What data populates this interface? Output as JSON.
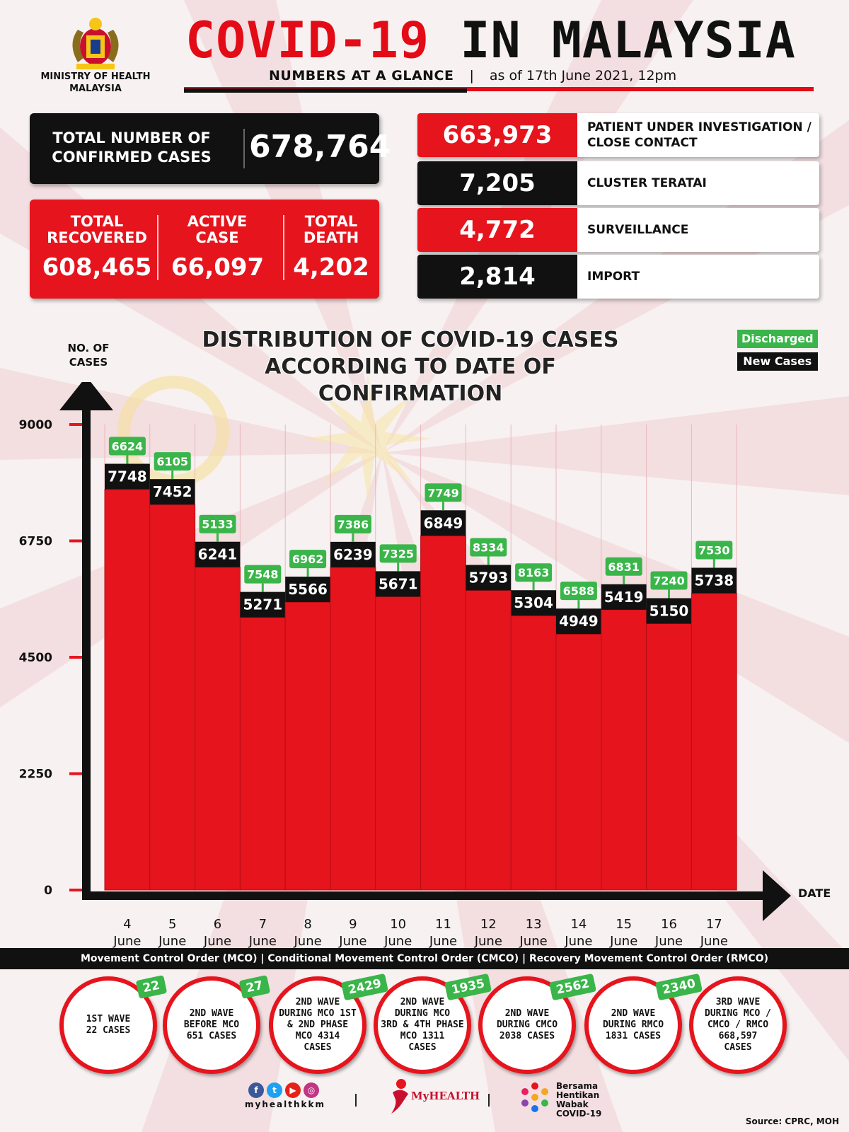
{
  "header": {
    "ministry": "MINISTRY OF HEALTH MALAYSIA",
    "title_red": "COVID-19",
    "title_black": "IN MALAYSIA",
    "subtitle": "NUMBERS AT A GLANCE",
    "separator": "|",
    "as_of": "as of 17th June 2021, 12pm"
  },
  "totals": {
    "confirmed_label": "TOTAL NUMBER OF CONFIRMED CASES",
    "confirmed_value": "678,764",
    "recovered_label": "TOTAL RECOVERED",
    "recovered_value": "608,465",
    "active_label": "ACTIVE CASE",
    "active_value": "66,097",
    "death_label": "TOTAL DEATH",
    "death_value": "4,202"
  },
  "categories": [
    {
      "value": "663,973",
      "label": "PATIENT UNDER INVESTIGATION / CLOSE CONTACT",
      "color": "#e6141d"
    },
    {
      "value": "7,205",
      "label": "CLUSTER TERATAI",
      "color": "#111111"
    },
    {
      "value": "4,772",
      "label": "SURVEILLANCE",
      "color": "#e6141d"
    },
    {
      "value": "2,814",
      "label": "IMPORT",
      "color": "#111111"
    }
  ],
  "chart_data": {
    "type": "bar",
    "title": "DISTRIBUTION OF COVID-19 CASES ACCORDING TO DATE OF CONFIRMATION",
    "ylabel": "NO. OF CASES",
    "xlabel": "DATE",
    "ylim": [
      0,
      9000
    ],
    "yticks": [
      0,
      2250,
      4500,
      6750,
      9000
    ],
    "categories": [
      "4 June",
      "5 June",
      "6 June",
      "7 June",
      "8 June",
      "9 June",
      "10 June",
      "11 June",
      "12 June",
      "13 June",
      "14 June",
      "15 June",
      "16 June",
      "17 June"
    ],
    "category_day": [
      "4",
      "5",
      "6",
      "7",
      "8",
      "9",
      "10",
      "11",
      "12",
      "13",
      "14",
      "15",
      "16",
      "17"
    ],
    "category_month": "June",
    "legend": [
      "Discharged",
      "New Cases"
    ],
    "legend_position": "top-right",
    "series": [
      {
        "name": "New Cases",
        "color": "#e6141d",
        "values": [
          7748,
          7452,
          6241,
          5271,
          5566,
          6239,
          5671,
          6849,
          5793,
          5304,
          4949,
          5419,
          5150,
          5738
        ]
      },
      {
        "name": "Discharged",
        "color": "#3ab54a",
        "values": [
          6624,
          6105,
          5133,
          7548,
          6962,
          7386,
          7325,
          7749,
          8334,
          8163,
          6588,
          6831,
          7240,
          7530
        ]
      }
    ]
  },
  "phases_bar": "Movement Control Order (MCO) | Conditional Movement Control Order (CMCO) | Recovery Movement Control Order (RMCO)",
  "waves": [
    {
      "text": "1ST WAVE\n22 CASES",
      "badge": "22"
    },
    {
      "text": "2ND WAVE\nBEFORE MCO\n651 CASES",
      "badge": "27"
    },
    {
      "text": "2ND WAVE\nDURING MCO 1ST\n& 2ND PHASE\nMCO 4314\nCASES",
      "badge": "2429"
    },
    {
      "text": "2ND WAVE\nDURING MCO\n3RD & 4TH PHASE\nMCO 1311\nCASES",
      "badge": "1935"
    },
    {
      "text": "2ND WAVE\nDURING CMCO\n2038 CASES",
      "badge": "2562"
    },
    {
      "text": "2ND WAVE\nDURING RMCO\n1831 CASES",
      "badge": "2340"
    },
    {
      "text": "3RD WAVE\nDURING MCO /\nCMCO / RMCO\n668,597\nCASES",
      "badge": ""
    }
  ],
  "footer": {
    "social_handle": "myhealthkkm",
    "myhealth": "MyHEALTH",
    "bersama": "Bersama\nHentikan\nWabak\nCOVID-19",
    "source": "Source: CPRC, MOH"
  },
  "colors": {
    "accent_red": "#e6141d",
    "green": "#3ab54a",
    "black": "#111111"
  }
}
